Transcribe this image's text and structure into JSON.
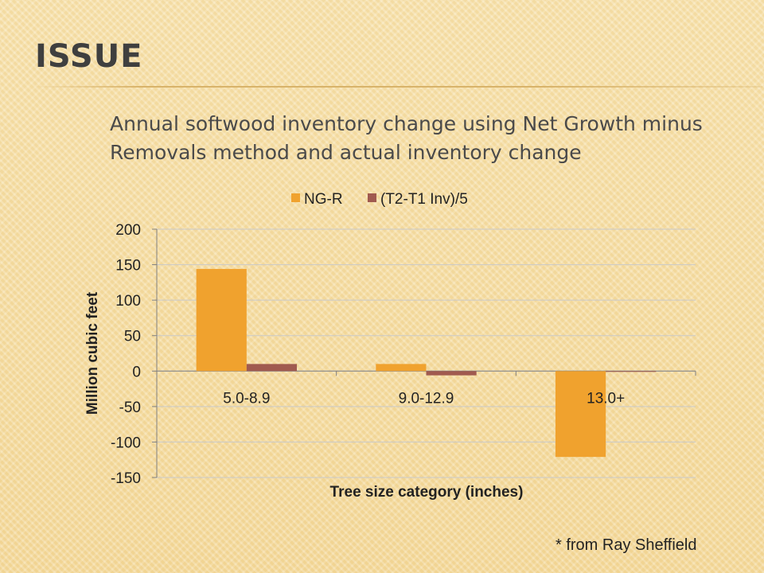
{
  "slide": {
    "title": "ISSUE",
    "subtitle": "Annual softwood inventory change using Net Growth minus Removals method and actual inventory change",
    "footnote": "* from Ray Sheffield"
  },
  "colors": {
    "series_ngr": "#f0a22e",
    "series_inv": "#a05a4f",
    "grid": "#c9c9c9",
    "axis": "#808080",
    "text": "#222222"
  },
  "chart_data": {
    "type": "bar",
    "title": "",
    "xlabel": "Tree size category (inches)",
    "ylabel": "Million cubic feet",
    "categories": [
      "5.0-8.9",
      "9.0-12.9",
      "13.0+"
    ],
    "series": [
      {
        "name": "NG-R",
        "values": [
          144,
          10,
          -121
        ]
      },
      {
        "name": "(T2-T1 Inv)/5",
        "values": [
          10,
          -6,
          -1
        ]
      }
    ],
    "ylim": [
      -150,
      200
    ],
    "yticks": [
      200,
      150,
      100,
      50,
      0,
      -50,
      -100,
      -150
    ],
    "grid": true,
    "legend": "top"
  }
}
